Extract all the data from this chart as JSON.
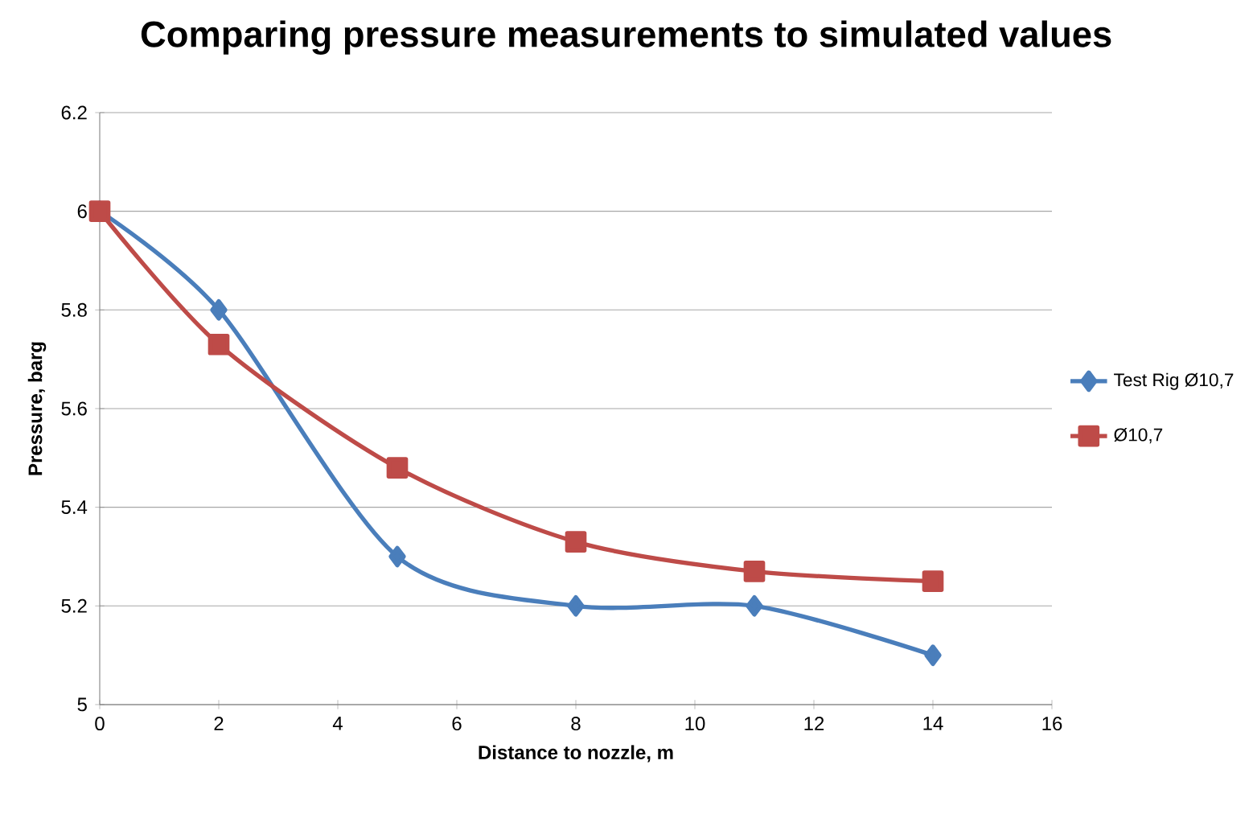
{
  "chart_data": {
    "type": "line",
    "title": "Comparing pressure measurements to simulated values",
    "xlabel": "Distance to nozzle, m",
    "ylabel": "Pressure, barg",
    "series": [
      {
        "name": "Test Rig Ø10,7",
        "color": "#4a7ebb",
        "marker": "diamond",
        "x": [
          0,
          2,
          5,
          8,
          11,
          14
        ],
        "values": [
          6,
          5.8,
          5.3,
          5.2,
          5.2,
          5.1
        ]
      },
      {
        "name": "Ø10,7",
        "color": "#be4b48",
        "marker": "square",
        "x": [
          0,
          2,
          5,
          8,
          11,
          14
        ],
        "values": [
          6,
          5.73,
          5.48,
          5.33,
          5.27,
          5.25
        ]
      }
    ],
    "xlim": [
      0,
      16
    ],
    "xticks": [
      0,
      2,
      4,
      6,
      8,
      10,
      12,
      14,
      16
    ],
    "ylim": [
      5,
      6.2
    ],
    "yticks": [
      5,
      5.2,
      5.4,
      5.6,
      5.8,
      6,
      6.2
    ],
    "grid": "y",
    "legend": "right",
    "line_style": "solid"
  }
}
